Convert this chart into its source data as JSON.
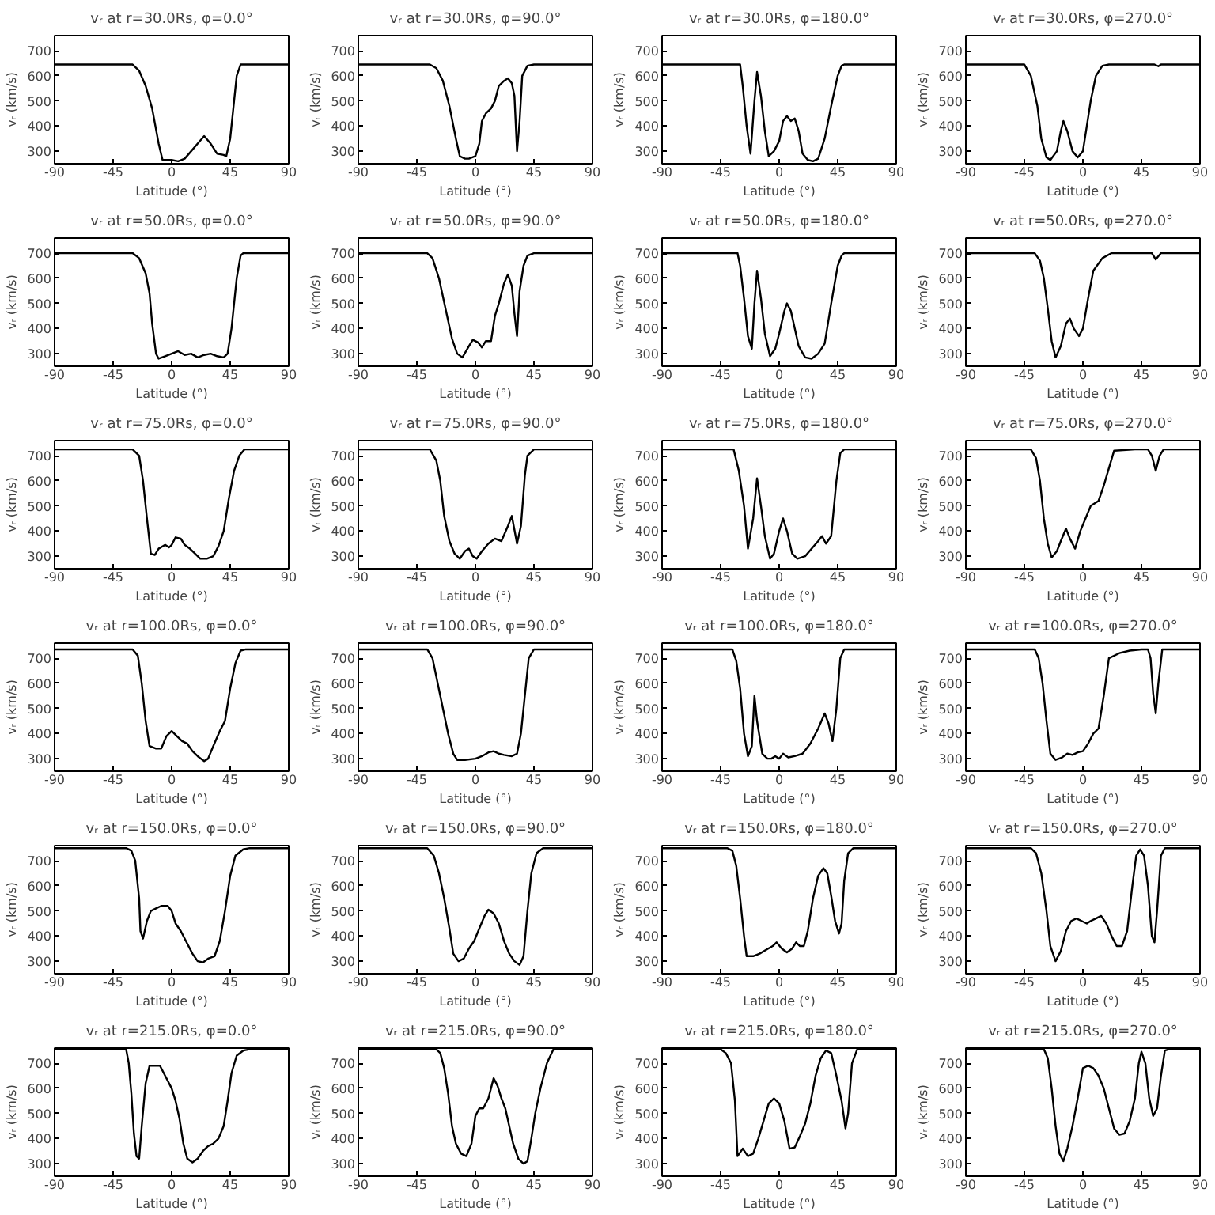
{
  "chart_data": [
    {
      "type": "line",
      "title": "vᵣ at r=30.0Rs, φ=0.0°",
      "xlabel": "Latitude (°)",
      "ylabel": "vᵣ (km/s)",
      "color": "#000000",
      "grid": false,
      "xlim": [
        -90,
        90
      ],
      "ylim": [
        250,
        760
      ],
      "xticks": [
        -90,
        -45,
        0,
        45,
        90
      ],
      "yticks": [
        300,
        400,
        500,
        600,
        700
      ],
      "x": [
        -90,
        -30,
        -25,
        -20,
        -15,
        -10,
        -7,
        0,
        5,
        10,
        15,
        20,
        25,
        30,
        35,
        40,
        42,
        45,
        48,
        50,
        53,
        90
      ],
      "values": [
        645,
        645,
        620,
        560,
        470,
        330,
        265,
        265,
        260,
        270,
        300,
        330,
        360,
        330,
        290,
        285,
        280,
        350,
        500,
        600,
        645,
        645
      ]
    },
    {
      "type": "line",
      "title": "vᵣ at r=30.0Rs, φ=90.0°",
      "xlabel": "Latitude (°)",
      "ylabel": "vᵣ (km/s)",
      "color": "#000000",
      "grid": false,
      "xlim": [
        -90,
        90
      ],
      "ylim": [
        250,
        760
      ],
      "xticks": [
        -90,
        -45,
        0,
        45,
        90
      ],
      "yticks": [
        300,
        400,
        500,
        600,
        700
      ],
      "x": [
        -90,
        -35,
        -30,
        -25,
        -20,
        -15,
        -12,
        -8,
        -5,
        0,
        3,
        5,
        8,
        12,
        15,
        18,
        22,
        25,
        28,
        30,
        32,
        34,
        36,
        40,
        45,
        90
      ],
      "values": [
        645,
        645,
        630,
        580,
        480,
        350,
        280,
        270,
        270,
        280,
        330,
        420,
        450,
        470,
        500,
        560,
        580,
        590,
        570,
        520,
        300,
        420,
        600,
        640,
        645,
        645
      ]
    },
    {
      "type": "line",
      "title": "vᵣ at r=30.0Rs, φ=180.0°",
      "xlabel": "Latitude (°)",
      "ylabel": "vᵣ (km/s)",
      "color": "#000000",
      "grid": false,
      "xlim": [
        -90,
        90
      ],
      "ylim": [
        250,
        760
      ],
      "xticks": [
        -90,
        -45,
        0,
        45,
        90
      ],
      "yticks": [
        300,
        400,
        500,
        600,
        700
      ],
      "x": [
        -90,
        -30,
        -28,
        -25,
        -22,
        -19,
        -17,
        -14,
        -11,
        -8,
        -4,
        0,
        3,
        6,
        9,
        12,
        15,
        18,
        22,
        26,
        30,
        35,
        40,
        45,
        48,
        50,
        90
      ],
      "values": [
        645,
        645,
        560,
        400,
        290,
        500,
        615,
        520,
        380,
        280,
        300,
        340,
        420,
        440,
        420,
        430,
        380,
        290,
        265,
        260,
        270,
        350,
        480,
        600,
        640,
        645,
        645
      ]
    },
    {
      "type": "line",
      "title": "vᵣ at r=30.0Rs, φ=270.0°",
      "xlabel": "Latitude (°)",
      "ylabel": "vᵣ (km/s)",
      "color": "#000000",
      "grid": false,
      "xlim": [
        -90,
        90
      ],
      "ylim": [
        250,
        760
      ],
      "xticks": [
        -90,
        -45,
        0,
        45,
        90
      ],
      "yticks": [
        300,
        400,
        500,
        600,
        700
      ],
      "x": [
        -90,
        -45,
        -40,
        -35,
        -32,
        -28,
        -25,
        -20,
        -17,
        -15,
        -12,
        -8,
        -4,
        0,
        3,
        6,
        10,
        15,
        20,
        55,
        58,
        60,
        90
      ],
      "values": [
        645,
        645,
        600,
        480,
        350,
        275,
        265,
        300,
        380,
        420,
        380,
        300,
        275,
        300,
        400,
        500,
        600,
        640,
        645,
        645,
        638,
        645,
        645
      ]
    },
    {
      "type": "line",
      "title": "vᵣ at r=50.0Rs, φ=0.0°",
      "xlabel": "Latitude (°)",
      "ylabel": "vᵣ (km/s)",
      "color": "#000000",
      "grid": false,
      "xlim": [
        -90,
        90
      ],
      "ylim": [
        250,
        760
      ],
      "xticks": [
        -90,
        -45,
        0,
        45,
        90
      ],
      "yticks": [
        300,
        400,
        500,
        600,
        700
      ],
      "x": [
        -90,
        -30,
        -25,
        -20,
        -17,
        -15,
        -12,
        -10,
        -5,
        0,
        5,
        10,
        15,
        20,
        25,
        30,
        35,
        40,
        43,
        46,
        50,
        53,
        55,
        90
      ],
      "values": [
        700,
        700,
        680,
        620,
        540,
        420,
        300,
        280,
        290,
        300,
        310,
        295,
        300,
        285,
        295,
        300,
        290,
        285,
        300,
        400,
        600,
        690,
        700,
        700
      ]
    },
    {
      "type": "line",
      "title": "vᵣ at r=50.0Rs, φ=90.0°",
      "xlabel": "Latitude (°)",
      "ylabel": "vᵣ (km/s)",
      "color": "#000000",
      "grid": false,
      "xlim": [
        -90,
        90
      ],
      "ylim": [
        250,
        760
      ],
      "xticks": [
        -90,
        -45,
        0,
        45,
        90
      ],
      "yticks": [
        300,
        400,
        500,
        600,
        700
      ],
      "x": [
        -90,
        -37,
        -33,
        -28,
        -23,
        -18,
        -14,
        -10,
        -5,
        -2,
        2,
        5,
        8,
        12,
        15,
        18,
        22,
        25,
        28,
        30,
        32,
        34,
        37,
        40,
        45,
        90
      ],
      "values": [
        700,
        700,
        680,
        600,
        480,
        360,
        300,
        285,
        330,
        355,
        345,
        325,
        350,
        350,
        450,
        500,
        580,
        615,
        570,
        460,
        370,
        550,
        650,
        690,
        700,
        700
      ]
    },
    {
      "type": "line",
      "title": "vᵣ at r=50.0Rs, φ=180.0°",
      "xlabel": "Latitude (°)",
      "ylabel": "vᵣ (km/s)",
      "color": "#000000",
      "grid": false,
      "xlim": [
        -90,
        90
      ],
      "ylim": [
        250,
        760
      ],
      "xticks": [
        -90,
        -45,
        0,
        45,
        90
      ],
      "yticks": [
        300,
        400,
        500,
        600,
        700
      ],
      "x": [
        -90,
        -32,
        -30,
        -27,
        -24,
        -21,
        -19,
        -17,
        -14,
        -11,
        -7,
        -3,
        0,
        4,
        6,
        9,
        12,
        15,
        20,
        25,
        30,
        35,
        40,
        45,
        48,
        50,
        90
      ],
      "values": [
        700,
        700,
        650,
        520,
        370,
        320,
        500,
        630,
        520,
        380,
        290,
        320,
        380,
        470,
        500,
        470,
        400,
        330,
        285,
        280,
        300,
        340,
        500,
        650,
        690,
        700,
        700
      ]
    },
    {
      "type": "line",
      "title": "vᵣ at r=50.0Rs, φ=270.0°",
      "xlabel": "Latitude (°)",
      "ylabel": "vᵣ (km/s)",
      "color": "#000000",
      "grid": false,
      "xlim": [
        -90,
        90
      ],
      "ylim": [
        250,
        760
      ],
      "xticks": [
        -90,
        -45,
        0,
        45,
        90
      ],
      "yticks": [
        300,
        400,
        500,
        600,
        700
      ],
      "x": [
        -90,
        -37,
        -33,
        -30,
        -27,
        -24,
        -21,
        -17,
        -13,
        -10,
        -7,
        -3,
        0,
        4,
        8,
        15,
        22,
        53,
        56,
        60,
        90
      ],
      "values": [
        700,
        700,
        670,
        600,
        480,
        350,
        285,
        330,
        420,
        440,
        400,
        370,
        400,
        520,
        630,
        680,
        700,
        700,
        675,
        700,
        700
      ]
    },
    {
      "type": "line",
      "title": "vᵣ at r=75.0Rs, φ=0.0°",
      "xlabel": "Latitude (°)",
      "ylabel": "vᵣ (km/s)",
      "color": "#000000",
      "grid": false,
      "xlim": [
        -90,
        90
      ],
      "ylim": [
        250,
        760
      ],
      "xticks": [
        -90,
        -45,
        0,
        45,
        90
      ],
      "yticks": [
        300,
        400,
        500,
        600,
        700
      ],
      "x": [
        -90,
        -30,
        -25,
        -22,
        -19,
        -16,
        -13,
        -10,
        -5,
        -2,
        0,
        3,
        7,
        10,
        14,
        18,
        22,
        27,
        32,
        36,
        40,
        44,
        48,
        52,
        56,
        90
      ],
      "values": [
        725,
        725,
        700,
        600,
        450,
        310,
        305,
        330,
        345,
        335,
        345,
        375,
        370,
        345,
        330,
        310,
        290,
        290,
        300,
        340,
        400,
        530,
        640,
        700,
        725,
        725
      ]
    },
    {
      "type": "line",
      "title": "vᵣ at r=75.0Rs, φ=90.0°",
      "xlabel": "Latitude (°)",
      "ylabel": "vᵣ (km/s)",
      "color": "#000000",
      "grid": false,
      "xlim": [
        -90,
        90
      ],
      "ylim": [
        250,
        760
      ],
      "xticks": [
        -90,
        -45,
        0,
        45,
        90
      ],
      "yticks": [
        300,
        400,
        500,
        600,
        700
      ],
      "x": [
        -90,
        -35,
        -30,
        -27,
        -24,
        -20,
        -16,
        -12,
        -8,
        -5,
        -2,
        1,
        5,
        10,
        15,
        20,
        25,
        28,
        32,
        35,
        38,
        40,
        45,
        90
      ],
      "values": [
        725,
        725,
        680,
        600,
        460,
        360,
        310,
        290,
        320,
        330,
        300,
        290,
        320,
        350,
        370,
        360,
        420,
        460,
        350,
        420,
        620,
        700,
        725,
        725
      ]
    },
    {
      "type": "line",
      "title": "vᵣ at r=75.0Rs, φ=180.0°",
      "xlabel": "Latitude (°)",
      "ylabel": "vᵣ (km/s)",
      "color": "#000000",
      "grid": false,
      "xlim": [
        -90,
        90
      ],
      "ylim": [
        250,
        760
      ],
      "xticks": [
        -90,
        -45,
        0,
        45,
        90
      ],
      "yticks": [
        300,
        400,
        500,
        600,
        700
      ],
      "x": [
        -90,
        -35,
        -31,
        -27,
        -24,
        -20,
        -17,
        -14,
        -11,
        -7,
        -4,
        0,
        3,
        6,
        10,
        14,
        20,
        25,
        30,
        33,
        36,
        40,
        44,
        47,
        50,
        90
      ],
      "values": [
        725,
        725,
        640,
        500,
        330,
        450,
        610,
        500,
        380,
        290,
        310,
        400,
        450,
        400,
        310,
        290,
        300,
        330,
        360,
        380,
        350,
        380,
        600,
        710,
        725,
        725
      ]
    },
    {
      "type": "line",
      "title": "vᵣ at r=75.0Rs, φ=270.0°",
      "xlabel": "Latitude (°)",
      "ylabel": "vᵣ (km/s)",
      "color": "#000000",
      "grid": false,
      "xlim": [
        -90,
        90
      ],
      "ylim": [
        250,
        760
      ],
      "xticks": [
        -90,
        -45,
        0,
        45,
        90
      ],
      "yticks": [
        300,
        400,
        500,
        600,
        700
      ],
      "x": [
        -90,
        -40,
        -36,
        -33,
        -30,
        -27,
        -24,
        -20,
        -17,
        -13,
        -10,
        -6,
        -2,
        2,
        6,
        12,
        16,
        20,
        24,
        40,
        50,
        53,
        56,
        59,
        62,
        90
      ],
      "values": [
        725,
        725,
        690,
        600,
        450,
        350,
        295,
        320,
        360,
        410,
        370,
        330,
        400,
        450,
        500,
        520,
        580,
        650,
        720,
        725,
        725,
        700,
        640,
        700,
        725,
        725
      ]
    },
    {
      "type": "line",
      "title": "vᵣ at r=100.0Rs, φ=0.0°",
      "xlabel": "Latitude (°)",
      "ylabel": "vᵣ (km/s)",
      "color": "#000000",
      "grid": false,
      "xlim": [
        -90,
        90
      ],
      "ylim": [
        250,
        760
      ],
      "xticks": [
        -90,
        -45,
        0,
        45,
        90
      ],
      "yticks": [
        300,
        400,
        500,
        600,
        700
      ],
      "x": [
        -90,
        -30,
        -26,
        -23,
        -20,
        -17,
        -12,
        -8,
        -4,
        0,
        4,
        8,
        12,
        16,
        20,
        25,
        28,
        32,
        37,
        41,
        45,
        49,
        53,
        57,
        90
      ],
      "values": [
        735,
        735,
        710,
        600,
        450,
        350,
        340,
        340,
        390,
        410,
        390,
        370,
        360,
        330,
        310,
        290,
        300,
        350,
        410,
        450,
        580,
        680,
        730,
        735,
        735
      ]
    },
    {
      "type": "line",
      "title": "vᵣ at r=100.0Rs, φ=90.0°",
      "xlabel": "Latitude (°)",
      "ylabel": "vᵣ (km/s)",
      "color": "#000000",
      "grid": false,
      "xlim": [
        -90,
        90
      ],
      "ylim": [
        250,
        760
      ],
      "xticks": [
        -90,
        -45,
        0,
        45,
        90
      ],
      "yticks": [
        300,
        400,
        500,
        600,
        700
      ],
      "x": [
        -90,
        -37,
        -33,
        -29,
        -25,
        -21,
        -17,
        -14,
        -8,
        0,
        5,
        10,
        14,
        18,
        22,
        28,
        32,
        35,
        38,
        41,
        45,
        90
      ],
      "values": [
        735,
        735,
        700,
        600,
        500,
        400,
        320,
        295,
        295,
        300,
        310,
        325,
        330,
        320,
        315,
        310,
        320,
        400,
        550,
        700,
        735,
        735
      ]
    },
    {
      "type": "line",
      "title": "vᵣ at r=100.0Rs, φ=180.0°",
      "xlabel": "Latitude (°)",
      "ylabel": "vᵣ (km/s)",
      "color": "#000000",
      "grid": false,
      "xlim": [
        -90,
        90
      ],
      "ylim": [
        250,
        760
      ],
      "xticks": [
        -90,
        -45,
        0,
        45,
        90
      ],
      "yticks": [
        300,
        400,
        500,
        600,
        700
      ],
      "x": [
        -90,
        -36,
        -33,
        -30,
        -27,
        -24,
        -21,
        -19,
        -17,
        -13,
        -9,
        -6,
        -3,
        0,
        3,
        7,
        12,
        18,
        24,
        30,
        35,
        38,
        41,
        44,
        47,
        50,
        90
      ],
      "values": [
        735,
        735,
        690,
        580,
        400,
        310,
        350,
        550,
        450,
        320,
        300,
        300,
        310,
        300,
        320,
        305,
        310,
        320,
        360,
        420,
        480,
        440,
        370,
        500,
        700,
        735,
        735
      ]
    },
    {
      "type": "line",
      "title": "vᵣ at r=100.0Rs, φ=270.0°",
      "xlabel": "Latitude (°)",
      "ylabel": "vᵣ (km/s)",
      "color": "#000000",
      "grid": false,
      "xlim": [
        -90,
        90
      ],
      "ylim": [
        250,
        760
      ],
      "xticks": [
        -90,
        -45,
        0,
        45,
        90
      ],
      "yticks": [
        300,
        400,
        500,
        600,
        700
      ],
      "x": [
        -90,
        -37,
        -34,
        -31,
        -28,
        -25,
        -21,
        -16,
        -12,
        -8,
        -4,
        0,
        4,
        8,
        12,
        16,
        20,
        28,
        36,
        45,
        50,
        52,
        54,
        56,
        58,
        61,
        90
      ],
      "values": [
        735,
        735,
        700,
        600,
        450,
        320,
        295,
        305,
        320,
        315,
        325,
        330,
        360,
        400,
        420,
        550,
        700,
        720,
        730,
        735,
        735,
        700,
        560,
        480,
        600,
        735,
        735
      ]
    },
    {
      "type": "line",
      "title": "vᵣ at r=150.0Rs, φ=0.0°",
      "xlabel": "Latitude (°)",
      "ylabel": "vᵣ (km/s)",
      "color": "#000000",
      "grid": false,
      "xlim": [
        -90,
        90
      ],
      "ylim": [
        250,
        760
      ],
      "xticks": [
        -90,
        -45,
        0,
        45,
        90
      ],
      "yticks": [
        300,
        400,
        500,
        600,
        700
      ],
      "x": [
        -90,
        -35,
        -31,
        -28,
        -25,
        -24,
        -22,
        -19,
        -16,
        -12,
        -8,
        -3,
        0,
        3,
        7,
        11,
        16,
        20,
        24,
        28,
        33,
        37,
        41,
        45,
        49,
        55,
        60,
        90
      ],
      "values": [
        750,
        750,
        740,
        700,
        550,
        420,
        390,
        460,
        500,
        510,
        520,
        520,
        500,
        450,
        420,
        380,
        330,
        300,
        295,
        310,
        320,
        380,
        500,
        640,
        720,
        745,
        750,
        750
      ]
    },
    {
      "type": "line",
      "title": "vᵣ at r=150.0Rs, φ=90.0°",
      "xlabel": "Latitude (°)",
      "ylabel": "vᵣ (km/s)",
      "color": "#000000",
      "grid": false,
      "xlim": [
        -90,
        90
      ],
      "ylim": [
        250,
        760
      ],
      "xticks": [
        -90,
        -45,
        0,
        45,
        90
      ],
      "yticks": [
        300,
        400,
        500,
        600,
        700
      ],
      "x": [
        -90,
        -37,
        -32,
        -28,
        -24,
        -20,
        -17,
        -13,
        -9,
        -5,
        -1,
        3,
        7,
        10,
        14,
        18,
        22,
        26,
        30,
        34,
        37,
        40,
        43,
        47,
        52,
        90
      ],
      "values": [
        750,
        750,
        720,
        650,
        550,
        430,
        330,
        300,
        310,
        350,
        380,
        430,
        480,
        505,
        490,
        450,
        380,
        330,
        300,
        285,
        320,
        500,
        650,
        730,
        750,
        750
      ]
    },
    {
      "type": "line",
      "title": "vᵣ at r=150.0Rs, φ=180.0°",
      "xlabel": "Latitude (°)",
      "ylabel": "vᵣ (km/s)",
      "color": "#000000",
      "grid": false,
      "xlim": [
        -90,
        90
      ],
      "ylim": [
        250,
        760
      ],
      "xticks": [
        -90,
        -45,
        0,
        45,
        90
      ],
      "yticks": [
        300,
        400,
        500,
        600,
        700
      ],
      "x": [
        -90,
        -40,
        -36,
        -33,
        -30,
        -27,
        -25,
        -20,
        -15,
        -10,
        -5,
        -2,
        2,
        6,
        10,
        13,
        16,
        19,
        22,
        26,
        30,
        34,
        37,
        40,
        43,
        46,
        48,
        50,
        53,
        57,
        90
      ],
      "values": [
        750,
        750,
        740,
        680,
        550,
        400,
        320,
        320,
        330,
        345,
        360,
        375,
        350,
        335,
        350,
        375,
        360,
        360,
        420,
        550,
        640,
        670,
        650,
        560,
        460,
        410,
        450,
        620,
        730,
        750,
        750
      ]
    },
    {
      "type": "line",
      "title": "vᵣ at r=150.0Rs, φ=270.0°",
      "xlabel": "Latitude (°)",
      "ylabel": "vᵣ (km/s)",
      "color": "#000000",
      "grid": false,
      "xlim": [
        -90,
        90
      ],
      "ylim": [
        250,
        760
      ],
      "xticks": [
        -90,
        -45,
        0,
        45,
        90
      ],
      "yticks": [
        300,
        400,
        500,
        600,
        700
      ],
      "x": [
        -90,
        -40,
        -36,
        -32,
        -28,
        -25,
        -21,
        -17,
        -13,
        -9,
        -5,
        -1,
        3,
        6,
        10,
        14,
        18,
        22,
        26,
        30,
        34,
        38,
        41,
        44,
        47,
        50,
        53,
        55,
        57,
        60,
        63,
        90
      ],
      "values": [
        750,
        750,
        730,
        650,
        500,
        360,
        300,
        340,
        420,
        460,
        470,
        460,
        450,
        460,
        470,
        480,
        450,
        400,
        360,
        360,
        420,
        600,
        720,
        745,
        720,
        600,
        400,
        375,
        500,
        720,
        750,
        750
      ]
    },
    {
      "type": "line",
      "title": "vᵣ at r=215.0Rs, φ=0.0°",
      "xlabel": "Latitude (°)",
      "ylabel": "vᵣ (km/s)",
      "color": "#000000",
      "grid": false,
      "xlim": [
        -90,
        90
      ],
      "ylim": [
        250,
        760
      ],
      "xticks": [
        -90,
        -45,
        0,
        45,
        90
      ],
      "yticks": [
        300,
        400,
        500,
        600,
        700
      ],
      "x": [
        -90,
        -35,
        -33,
        -31,
        -29,
        -27,
        -25,
        -23,
        -20,
        -17,
        -13,
        -9,
        -5,
        0,
        3,
        6,
        9,
        12,
        16,
        20,
        24,
        28,
        32,
        36,
        40,
        43,
        46,
        50,
        55,
        60,
        90
      ],
      "values": [
        755,
        755,
        700,
        580,
        420,
        330,
        320,
        450,
        620,
        690,
        690,
        690,
        650,
        600,
        550,
        480,
        380,
        320,
        305,
        320,
        350,
        370,
        380,
        400,
        450,
        550,
        660,
        730,
        750,
        755,
        755
      ]
    },
    {
      "type": "line",
      "title": "vᵣ at r=215.0Rs, φ=90.0°",
      "xlabel": "Latitude (°)",
      "ylabel": "vᵣ (km/s)",
      "color": "#000000",
      "grid": false,
      "xlim": [
        -90,
        90
      ],
      "ylim": [
        250,
        760
      ],
      "xticks": [
        -90,
        -45,
        0,
        45,
        90
      ],
      "yticks": [
        300,
        400,
        500,
        600,
        700
      ],
      "x": [
        -90,
        -30,
        -27,
        -24,
        -21,
        -18,
        -15,
        -11,
        -7,
        -3,
        0,
        3,
        6,
        10,
        14,
        17,
        20,
        23,
        26,
        29,
        33,
        37,
        40,
        43,
        46,
        50,
        55,
        60,
        90
      ],
      "values": [
        755,
        755,
        740,
        680,
        580,
        450,
        380,
        340,
        330,
        380,
        490,
        520,
        520,
        560,
        640,
        610,
        560,
        520,
        450,
        380,
        320,
        300,
        310,
        400,
        500,
        600,
        700,
        755,
        755
      ]
    },
    {
      "type": "line",
      "title": "vᵣ at r=215.0Rs, φ=180.0°",
      "xlabel": "Latitude (°)",
      "ylabel": "vᵣ (km/s)",
      "color": "#000000",
      "grid": false,
      "xlim": [
        -90,
        90
      ],
      "ylim": [
        250,
        760
      ],
      "xticks": [
        -90,
        -45,
        0,
        45,
        90
      ],
      "yticks": [
        300,
        400,
        500,
        600,
        700
      ],
      "x": [
        -90,
        -45,
        -41,
        -37,
        -34,
        -32,
        -28,
        -24,
        -20,
        -16,
        -12,
        -8,
        -4,
        0,
        4,
        8,
        12,
        16,
        20,
        24,
        28,
        32,
        36,
        40,
        44,
        48,
        51,
        53,
        56,
        60,
        90
      ],
      "values": [
        755,
        755,
        740,
        700,
        550,
        330,
        360,
        330,
        340,
        400,
        470,
        540,
        560,
        540,
        470,
        360,
        365,
        410,
        460,
        540,
        650,
        720,
        750,
        740,
        650,
        550,
        440,
        500,
        700,
        755,
        755
      ]
    },
    {
      "type": "line",
      "title": "vᵣ at r=215.0Rs, φ=270.0°",
      "xlabel": "Latitude (°)",
      "ylabel": "vᵣ (km/s)",
      "color": "#000000",
      "grid": false,
      "xlim": [
        -90,
        90
      ],
      "ylim": [
        250,
        760
      ],
      "xticks": [
        -90,
        -45,
        0,
        45,
        90
      ],
      "yticks": [
        300,
        400,
        500,
        600,
        700
      ],
      "x": [
        -90,
        -30,
        -27,
        -24,
        -21,
        -18,
        -15,
        -12,
        -8,
        -4,
        0,
        4,
        8,
        12,
        16,
        20,
        24,
        28,
        32,
        36,
        40,
        43,
        45,
        48,
        51,
        54,
        57,
        60,
        63,
        66,
        90
      ],
      "values": [
        755,
        755,
        720,
        600,
        450,
        340,
        310,
        360,
        450,
        560,
        680,
        690,
        680,
        650,
        600,
        520,
        440,
        415,
        420,
        470,
        560,
        700,
        745,
        700,
        560,
        490,
        520,
        650,
        750,
        755,
        755
      ]
    }
  ]
}
